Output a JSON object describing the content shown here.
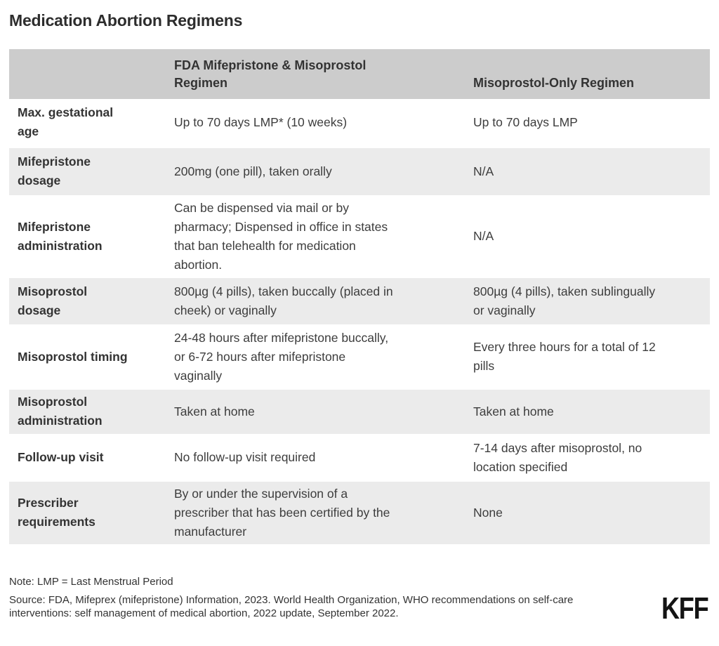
{
  "page": {
    "title": "Medication Abortion Regimens"
  },
  "colors": {
    "header_bg": "#cccccc",
    "alt_row_bg": "#ebebeb",
    "body_text": "#3d3d3d",
    "title_text": "#2d2d2d"
  },
  "table": {
    "header": {
      "col1": "",
      "col2": "FDA Mifepristone & Misoprostol\nRegimen",
      "col3": "Misoprostol-Only Regimen"
    },
    "rows": [
      {
        "label": "Max. gestational\nage",
        "fda": "Up to 70 days LMP* (10 weeks)",
        "miso": "Up to 70 days LMP"
      },
      {
        "label": "Mifepristone\ndosage",
        "fda": "200mg (one pill), taken orally",
        "miso": "N/A"
      },
      {
        "label": "Mifepristone\nadministration",
        "fda": "Can be dispensed via mail or by\npharmacy; Dispensed in office in states\nthat ban telehealth for medication\nabortion.",
        "miso": "N/A"
      },
      {
        "label": "Misoprostol\ndosage",
        "fda": "800µg (4 pills), taken buccally (placed in\ncheek) or vaginally",
        "miso": "800µg (4 pills), taken sublingually\nor vaginally"
      },
      {
        "label": "Misoprostol timing",
        "fda": "24-48 hours after mifepristone buccally,\nor 6-72 hours after mifepristone\nvaginally",
        "miso": "Every three hours for a total of 12\npills"
      },
      {
        "label": "Misoprostol\nadministration",
        "fda": "Taken at home",
        "miso": "Taken at home"
      },
      {
        "label": "Follow-up visit",
        "fda": "No follow-up visit required",
        "miso": "7-14 days after misoprostol, no\nlocation specified"
      },
      {
        "label": "Prescriber\nrequirements",
        "fda": "By or under the supervision of a\nprescriber that has been certified by the\nmanufacturer",
        "miso": "None"
      }
    ]
  },
  "footer": {
    "note": "Note: LMP = Last Menstrual Period",
    "source": "Source: FDA, Mifeprex (mifepristone) Information, 2023. World Health Organization, WHO recommendations on self-care\ninterventions: self management of medical abortion, 2022 update, September 2022.",
    "logo": "KFF"
  },
  "chart_data": {
    "type": "table",
    "title": "Medication Abortion Regimens",
    "columns": [
      "",
      "FDA Mifepristone & Misoprostol Regimen",
      "Misoprostol-Only Regimen"
    ],
    "rows": [
      [
        "Max. gestational age",
        "Up to 70 days LMP* (10 weeks)",
        "Up to 70 days LMP"
      ],
      [
        "Mifepristone dosage",
        "200mg (one pill), taken orally",
        "N/A"
      ],
      [
        "Mifepristone administration",
        "Can be dispensed via mail or by pharmacy; Dispensed in office in states that ban telehealth for medication abortion.",
        "N/A"
      ],
      [
        "Misoprostol dosage",
        "800µg (4 pills), taken buccally (placed in cheek) or vaginally",
        "800µg (4 pills), taken sublingually or vaginally"
      ],
      [
        "Misoprostol timing",
        "24-48 hours after mifepristone buccally, or 6-72 hours after mifepristone vaginally",
        "Every three hours for a total of 12 pills"
      ],
      [
        "Misoprostol administration",
        "Taken at home",
        "Taken at home"
      ],
      [
        "Follow-up visit",
        "No follow-up visit required",
        "7-14 days after misoprostol, no location specified"
      ],
      [
        "Prescriber requirements",
        "By or under the supervision of a prescriber that has been certified by the manufacturer",
        "None"
      ]
    ],
    "note": "Note: LMP = Last Menstrual Period",
    "source": "Source: FDA, Mifeprex (mifepristone) Information, 2023. World Health Organization, WHO recommendations on self-care interventions: self management of medical abortion, 2022 update, September 2022."
  }
}
